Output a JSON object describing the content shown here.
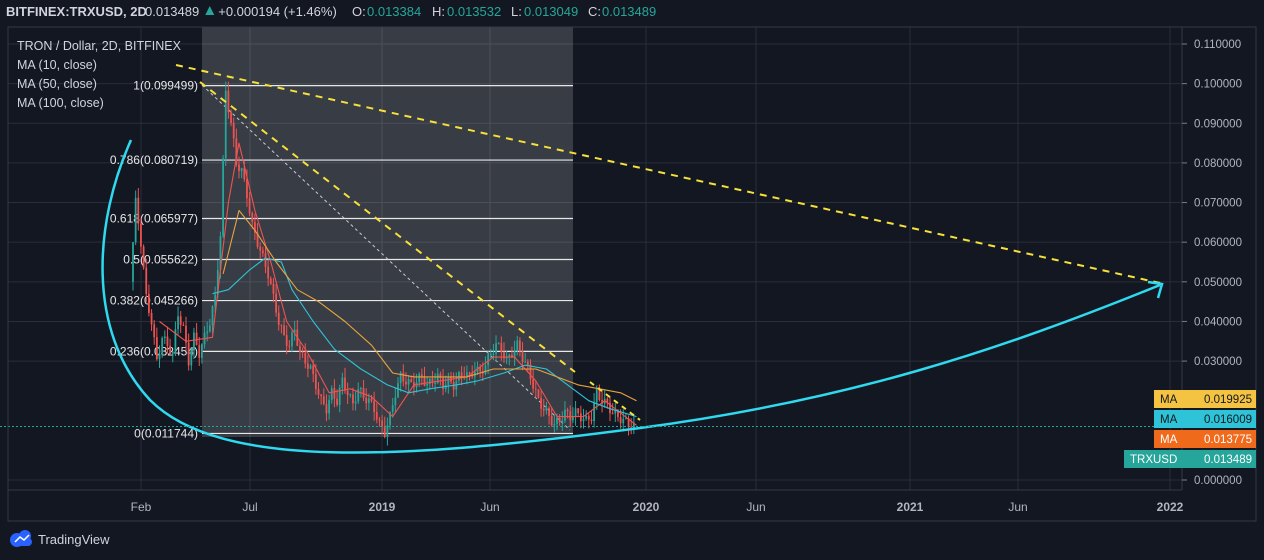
{
  "header": {
    "symbol": "BITFINEX:TRXUSD, 2D",
    "last": "0.013489",
    "change": "+0.000194 (+1.46%)",
    "open_label": "O:",
    "open": "0.013384",
    "high_label": "H:",
    "high": "0.013532",
    "low_label": "L:",
    "low": "0.013049",
    "close_label": "C:",
    "close": "0.013489"
  },
  "legend": {
    "title": "TRON / Dollar, 2D, BITFINEX",
    "items": [
      "MA (10, close)",
      "MA (50, close)",
      "MA (100, close)"
    ]
  },
  "badges": [
    {
      "label": "MA",
      "value": "0.019925",
      "color": "#f5c342",
      "text_color": "#131722"
    },
    {
      "label": "MA",
      "value": "0.016009",
      "color": "#2ec3d6",
      "text_color": "#131722"
    },
    {
      "label": "MA",
      "value": "0.013775",
      "color": "#f06a1c",
      "text_color": "#ffffff"
    },
    {
      "label": "TRXUSD",
      "value": "0.013489",
      "color": "#26a69a",
      "text_color": "#ffffff"
    }
  ],
  "branding": {
    "name": "TradingView"
  },
  "colors": {
    "up": "#26a69a",
    "down": "#ef5350",
    "ma10": "#ef5350",
    "ma50": "#2ec3d6",
    "ma100": "#e8a33d",
    "trend": "#f5e13a",
    "curve": "#2fd9ef"
  },
  "chart_data": {
    "type": "candlestick",
    "x_axis": {
      "labels": [
        "Feb",
        "Jul",
        "2019",
        "Jun",
        "2020",
        "Jun",
        "2021",
        "Jun",
        "2022"
      ]
    },
    "y_axis": {
      "range": [
        -0.001,
        0.112
      ],
      "ticks": [
        "0.110000",
        "0.100000",
        "0.090000",
        "0.080000",
        "0.070000",
        "0.060000",
        "0.050000",
        "0.040000",
        "0.030000",
        "0.000000"
      ]
    },
    "fibonacci": [
      {
        "ratio": "1",
        "value": 0.099499,
        "label": "1(0.099499)"
      },
      {
        "ratio": "0.786",
        "value": 0.080719,
        "label": "0.786(0.080719)"
      },
      {
        "ratio": "0.618",
        "value": 0.065977,
        "label": "0.618(0.065977)"
      },
      {
        "ratio": "0.5",
        "value": 0.055622,
        "label": "0.5(0.055622)"
      },
      {
        "ratio": "0.382",
        "value": 0.045266,
        "label": "0.382(0.045266)"
      },
      {
        "ratio": "0.236",
        "value": 0.032454,
        "label": "0.236(0.032454)"
      },
      {
        "ratio": "0",
        "value": 0.011744,
        "label": "0(0.011744)"
      }
    ],
    "price_series": [
      [
        0,
        0.05
      ],
      [
        2,
        0.07
      ],
      [
        4,
        0.06
      ],
      [
        6,
        0.046
      ],
      [
        8,
        0.04
      ],
      [
        10,
        0.03
      ],
      [
        12,
        0.036
      ],
      [
        14,
        0.034
      ],
      [
        16,
        0.032
      ],
      [
        18,
        0.042
      ],
      [
        20,
        0.038
      ],
      [
        22,
        0.03
      ],
      [
        24,
        0.036
      ],
      [
        26,
        0.032
      ],
      [
        28,
        0.036
      ],
      [
        30,
        0.04
      ],
      [
        32,
        0.046
      ],
      [
        34,
        0.062
      ],
      [
        36,
        0.098
      ],
      [
        38,
        0.09
      ],
      [
        40,
        0.08
      ],
      [
        42,
        0.078
      ],
      [
        44,
        0.072
      ],
      [
        46,
        0.064
      ],
      [
        48,
        0.06
      ],
      [
        50,
        0.056
      ],
      [
        52,
        0.052
      ],
      [
        54,
        0.046
      ],
      [
        56,
        0.04
      ],
      [
        58,
        0.036
      ],
      [
        60,
        0.034
      ],
      [
        62,
        0.038
      ],
      [
        64,
        0.032
      ],
      [
        66,
        0.03
      ],
      [
        68,
        0.028
      ],
      [
        70,
        0.024
      ],
      [
        72,
        0.02
      ],
      [
        74,
        0.018
      ],
      [
        76,
        0.022
      ],
      [
        78,
        0.02
      ],
      [
        80,
        0.025
      ],
      [
        82,
        0.022
      ],
      [
        84,
        0.019
      ],
      [
        86,
        0.023
      ],
      [
        88,
        0.021
      ],
      [
        90,
        0.02
      ],
      [
        92,
        0.018
      ],
      [
        94,
        0.014
      ],
      [
        96,
        0.012
      ],
      [
        98,
        0.016
      ],
      [
        100,
        0.022
      ],
      [
        102,
        0.026
      ],
      [
        104,
        0.025
      ],
      [
        106,
        0.024
      ],
      [
        108,
        0.025
      ],
      [
        110,
        0.026
      ],
      [
        112,
        0.024
      ],
      [
        114,
        0.025
      ],
      [
        116,
        0.026
      ],
      [
        118,
        0.024
      ],
      [
        120,
        0.025
      ],
      [
        122,
        0.024
      ],
      [
        124,
        0.026
      ],
      [
        126,
        0.027
      ],
      [
        128,
        0.026
      ],
      [
        130,
        0.028
      ],
      [
        132,
        0.027
      ],
      [
        134,
        0.029
      ],
      [
        136,
        0.032
      ],
      [
        138,
        0.034
      ],
      [
        140,
        0.033
      ],
      [
        142,
        0.03
      ],
      [
        144,
        0.032
      ],
      [
        146,
        0.034
      ],
      [
        148,
        0.031
      ],
      [
        150,
        0.028
      ],
      [
        152,
        0.024
      ],
      [
        154,
        0.02
      ],
      [
        156,
        0.018
      ],
      [
        158,
        0.016
      ],
      [
        160,
        0.014
      ],
      [
        162,
        0.015
      ],
      [
        164,
        0.017
      ],
      [
        166,
        0.016
      ],
      [
        168,
        0.017
      ],
      [
        170,
        0.016
      ],
      [
        172,
        0.015
      ],
      [
        174,
        0.016
      ],
      [
        176,
        0.022
      ],
      [
        178,
        0.02
      ],
      [
        180,
        0.019
      ],
      [
        182,
        0.017
      ],
      [
        184,
        0.016
      ],
      [
        186,
        0.015
      ],
      [
        188,
        0.014
      ],
      [
        190,
        0.0135
      ]
    ],
    "ma_series": [
      {
        "name": "MA (10, close)",
        "points": [
          [
            10,
            0.04
          ],
          [
            20,
            0.035
          ],
          [
            30,
            0.036
          ],
          [
            36,
            0.07
          ],
          [
            40,
            0.085
          ],
          [
            46,
            0.068
          ],
          [
            52,
            0.055
          ],
          [
            58,
            0.04
          ],
          [
            66,
            0.032
          ],
          [
            74,
            0.022
          ],
          [
            82,
            0.023
          ],
          [
            90,
            0.021
          ],
          [
            98,
            0.016
          ],
          [
            106,
            0.024
          ],
          [
            116,
            0.025
          ],
          [
            126,
            0.026
          ],
          [
            136,
            0.031
          ],
          [
            144,
            0.031
          ],
          [
            152,
            0.025
          ],
          [
            160,
            0.016
          ],
          [
            170,
            0.016
          ],
          [
            178,
            0.02
          ],
          [
            190,
            0.0138
          ]
        ]
      },
      {
        "name": "MA (50, close)",
        "points": [
          [
            30,
            0.047
          ],
          [
            36,
            0.048
          ],
          [
            44,
            0.053
          ],
          [
            50,
            0.056
          ],
          [
            56,
            0.055
          ],
          [
            60,
            0.048
          ],
          [
            68,
            0.04
          ],
          [
            76,
            0.033
          ],
          [
            86,
            0.028
          ],
          [
            96,
            0.024
          ],
          [
            104,
            0.022
          ],
          [
            112,
            0.023
          ],
          [
            122,
            0.024
          ],
          [
            130,
            0.025
          ],
          [
            140,
            0.027
          ],
          [
            148,
            0.029
          ],
          [
            156,
            0.028
          ],
          [
            164,
            0.024
          ],
          [
            172,
            0.02
          ],
          [
            180,
            0.018
          ],
          [
            190,
            0.016
          ]
        ]
      },
      {
        "name": "MA (100, close)",
        "points": [
          [
            34,
            0.052
          ],
          [
            40,
            0.068
          ],
          [
            46,
            0.063
          ],
          [
            54,
            0.055
          ],
          [
            62,
            0.048
          ],
          [
            70,
            0.045
          ],
          [
            80,
            0.04
          ],
          [
            90,
            0.034
          ],
          [
            98,
            0.027
          ],
          [
            106,
            0.026
          ],
          [
            116,
            0.026
          ],
          [
            126,
            0.026
          ],
          [
            136,
            0.028
          ],
          [
            144,
            0.028
          ],
          [
            152,
            0.028
          ],
          [
            160,
            0.026
          ],
          [
            168,
            0.024
          ],
          [
            176,
            0.023
          ],
          [
            184,
            0.022
          ],
          [
            190,
            0.02
          ]
        ]
      }
    ]
  }
}
